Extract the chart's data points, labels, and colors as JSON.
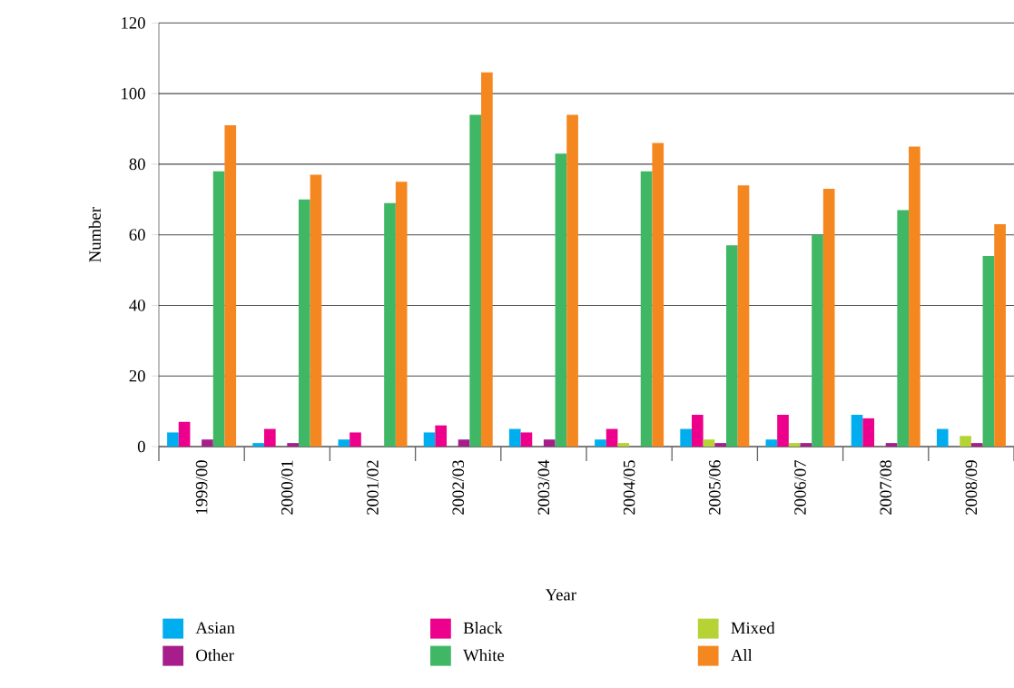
{
  "chart_data": {
    "type": "bar",
    "xlabel": "Year",
    "ylabel": "Number",
    "categories": [
      "1999/00",
      "2000/01",
      "2001/02",
      "2002/03",
      "2003/04",
      "2004/05",
      "2005/06",
      "2006/07",
      "2007/08",
      "2008/09"
    ],
    "series": [
      {
        "name": "Asian",
        "color": "#00aeef",
        "values": [
          4,
          1,
          2,
          4,
          5,
          2,
          5,
          2,
          9,
          5
        ]
      },
      {
        "name": "Black",
        "color": "#ec008c",
        "values": [
          7,
          5,
          4,
          6,
          4,
          5,
          9,
          9,
          8,
          0
        ]
      },
      {
        "name": "Mixed",
        "color": "#b5d334",
        "values": [
          0,
          0,
          0,
          0,
          0,
          1,
          2,
          1,
          0,
          3
        ]
      },
      {
        "name": "Other",
        "color": "#a71d8b",
        "values": [
          2,
          1,
          0,
          2,
          2,
          0,
          1,
          1,
          1,
          1
        ]
      },
      {
        "name": "White",
        "color": "#3fb764",
        "values": [
          78,
          70,
          69,
          94,
          83,
          78,
          57,
          60,
          67,
          54
        ]
      },
      {
        "name": "All",
        "color": "#f58720",
        "values": [
          91,
          77,
          75,
          106,
          94,
          86,
          74,
          73,
          85,
          63
        ]
      }
    ],
    "ylim": [
      0,
      120
    ],
    "yticks": [
      0,
      20,
      40,
      60,
      80,
      100,
      120
    ],
    "grid": "y",
    "legend": "bottom"
  }
}
